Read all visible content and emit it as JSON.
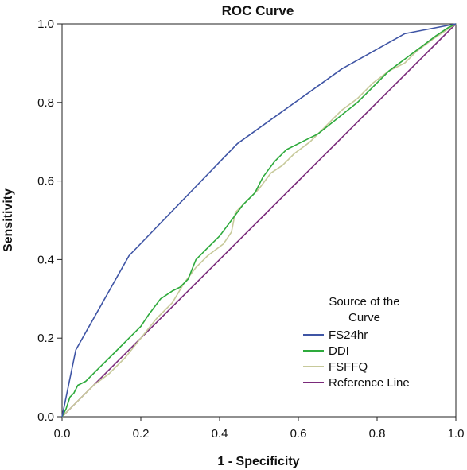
{
  "chart_data": {
    "type": "line",
    "title": "ROC Curve",
    "xlabel": "1 - Specificity",
    "ylabel": "Sensitivity",
    "xlim": [
      0,
      1
    ],
    "ylim": [
      0,
      1
    ],
    "xticks": [
      "0.0",
      "0.2",
      "0.4",
      "0.6",
      "0.8",
      "1.0"
    ],
    "yticks": [
      "0.0",
      "0.2",
      "0.4",
      "0.6",
      "0.8",
      "1.0"
    ],
    "grid": false,
    "legend": {
      "title_lines": [
        "Source of the",
        "Curve"
      ],
      "placement": "bottom-right"
    },
    "series": [
      {
        "name": "FS24hr",
        "color": "#3f55a5",
        "points": [
          [
            0,
            0
          ],
          [
            0.035,
            0.17
          ],
          [
            0.17,
            0.41
          ],
          [
            0.445,
            0.695
          ],
          [
            0.71,
            0.885
          ],
          [
            0.87,
            0.975
          ],
          [
            1,
            1
          ]
        ]
      },
      {
        "name": "DDI",
        "color": "#2eaa3c",
        "points": [
          [
            0,
            0
          ],
          [
            0.01,
            0.02
          ],
          [
            0.02,
            0.05
          ],
          [
            0.03,
            0.06
          ],
          [
            0.04,
            0.08
          ],
          [
            0.06,
            0.09
          ],
          [
            0.09,
            0.12
          ],
          [
            0.13,
            0.16
          ],
          [
            0.17,
            0.2
          ],
          [
            0.2,
            0.23
          ],
          [
            0.22,
            0.26
          ],
          [
            0.25,
            0.3
          ],
          [
            0.28,
            0.32
          ],
          [
            0.3,
            0.33
          ],
          [
            0.32,
            0.35
          ],
          [
            0.34,
            0.4
          ],
          [
            0.37,
            0.43
          ],
          [
            0.4,
            0.46
          ],
          [
            0.43,
            0.5
          ],
          [
            0.46,
            0.54
          ],
          [
            0.49,
            0.57
          ],
          [
            0.51,
            0.61
          ],
          [
            0.54,
            0.65
          ],
          [
            0.57,
            0.68
          ],
          [
            0.61,
            0.7
          ],
          [
            0.65,
            0.72
          ],
          [
            0.7,
            0.76
          ],
          [
            0.75,
            0.8
          ],
          [
            0.79,
            0.84
          ],
          [
            0.83,
            0.88
          ],
          [
            0.87,
            0.91
          ],
          [
            0.91,
            0.94
          ],
          [
            0.95,
            0.97
          ],
          [
            0.98,
            0.99
          ],
          [
            1,
            1
          ]
        ]
      },
      {
        "name": "FSFFQ",
        "color": "#c7c99a",
        "points": [
          [
            0,
            0
          ],
          [
            0.02,
            0.02
          ],
          [
            0.05,
            0.05
          ],
          [
            0.08,
            0.08
          ],
          [
            0.12,
            0.11
          ],
          [
            0.16,
            0.15
          ],
          [
            0.2,
            0.2
          ],
          [
            0.24,
            0.25
          ],
          [
            0.28,
            0.29
          ],
          [
            0.31,
            0.34
          ],
          [
            0.34,
            0.38
          ],
          [
            0.37,
            0.41
          ],
          [
            0.41,
            0.44
          ],
          [
            0.43,
            0.47
          ],
          [
            0.44,
            0.52
          ],
          [
            0.47,
            0.55
          ],
          [
            0.5,
            0.58
          ],
          [
            0.53,
            0.62
          ],
          [
            0.56,
            0.64
          ],
          [
            0.59,
            0.67
          ],
          [
            0.63,
            0.7
          ],
          [
            0.67,
            0.74
          ],
          [
            0.71,
            0.78
          ],
          [
            0.75,
            0.81
          ],
          [
            0.79,
            0.85
          ],
          [
            0.83,
            0.88
          ],
          [
            0.87,
            0.9
          ],
          [
            0.9,
            0.93
          ],
          [
            0.94,
            0.96
          ],
          [
            0.97,
            0.98
          ],
          [
            1,
            1
          ]
        ]
      },
      {
        "name": "Reference Line",
        "color": "#7a2a7a",
        "points": [
          [
            0,
            0
          ],
          [
            1,
            1
          ]
        ]
      }
    ]
  }
}
